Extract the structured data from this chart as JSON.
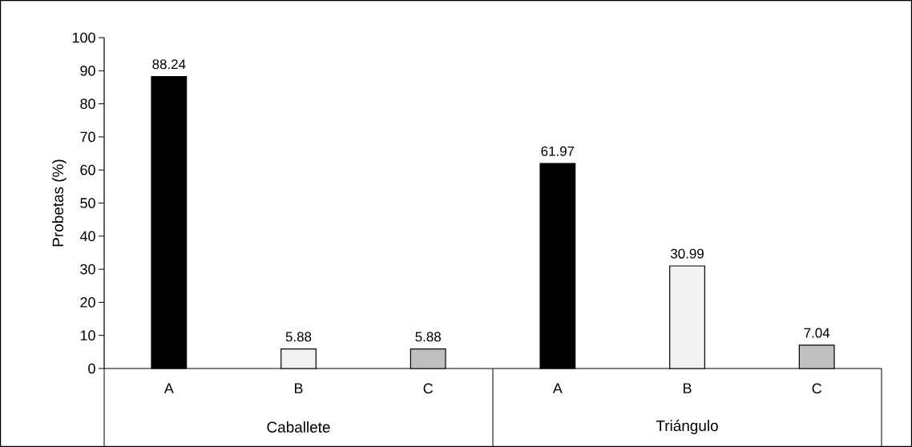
{
  "chart_data": {
    "type": "bar",
    "ylabel": "Probetas (%)",
    "categories": [
      "A",
      "B",
      "C",
      "A",
      "B",
      "C"
    ],
    "values": [
      88.24,
      5.88,
      5.88,
      61.97,
      30.99,
      7.04
    ],
    "colors": [
      "#000000",
      "#f2f2f2",
      "#bfbfbf",
      "#000000",
      "#f2f2f2",
      "#bfbfbf"
    ],
    "annotations": [
      "Caballete",
      "Triángulo"
    ],
    "ylim": [
      0,
      100
    ],
    "yticks": [
      0,
      10,
      20,
      30,
      40,
      50,
      60,
      70,
      80,
      90,
      100
    ],
    "data_labels": true
  }
}
